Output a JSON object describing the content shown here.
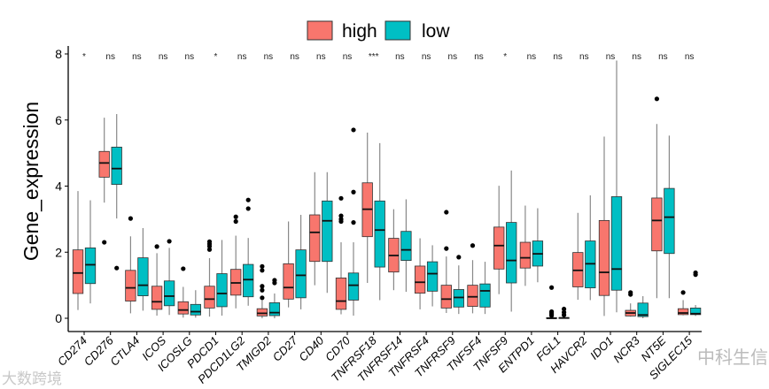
{
  "chart_data": {
    "type": "boxplot",
    "ylabel": "Gene_expression",
    "xlabel": "",
    "ylim": [
      0,
      8
    ],
    "yticks": [
      0,
      2,
      4,
      6,
      8
    ],
    "legend": {
      "position": "top",
      "entries": [
        {
          "name": "high",
          "color": "#F8766D"
        },
        {
          "name": "low",
          "color": "#00BFC4"
        }
      ]
    },
    "categories": [
      "CD274",
      "CD276",
      "CTLA4",
      "ICOS",
      "ICOSLG",
      "PDCD1",
      "PDCD1LG2",
      "TMIGD2",
      "CD27",
      "CD40",
      "CD70",
      "TNFRSF18",
      "TNFRSF14",
      "TNFRSF4",
      "TNFRSF9",
      "TNFSF4",
      "TNFSF9",
      "ENTPD1",
      "FGL1",
      "HAVCR2",
      "IDO1",
      "NCR3",
      "NT5E",
      "SIGLEC15"
    ],
    "significance": [
      "*",
      "ns",
      "ns",
      "ns",
      "ns",
      "*",
      "ns",
      "ns",
      "ns",
      "ns",
      "ns",
      "***",
      "ns",
      "ns",
      "ns",
      "ns",
      "*",
      "ns",
      "ns",
      "ns",
      "ns",
      "ns",
      "ns",
      "ns"
    ],
    "series": [
      {
        "name": "high",
        "boxes": [
          [
            0.25,
            0.75,
            1.37,
            2.07,
            3.85,
            []
          ],
          [
            3.5,
            4.27,
            4.7,
            5.05,
            6.07,
            [
              2.3
            ]
          ],
          [
            0.15,
            0.52,
            0.92,
            1.45,
            2.48,
            [
              3.02
            ]
          ],
          [
            0.08,
            0.27,
            0.5,
            0.97,
            1.97,
            [
              2.17
            ]
          ],
          [
            0.02,
            0.13,
            0.25,
            0.5,
            0.95,
            [
              1.5
            ]
          ],
          [
            0.05,
            0.31,
            0.58,
            0.97,
            1.82,
            [
              2.08,
              2.18,
              2.25,
              2.32
            ]
          ],
          [
            0.3,
            0.7,
            1.07,
            1.48,
            2.5,
            [
              2.93,
              3.07
            ]
          ],
          [
            0.0,
            0.07,
            0.15,
            0.29,
            0.55,
            [
              0.62,
              0.85,
              0.97,
              1.45,
              1.57
            ]
          ],
          [
            0.33,
            0.58,
            0.93,
            1.65,
            2.93,
            []
          ],
          [
            1.0,
            1.72,
            2.6,
            3.13,
            4.42,
            []
          ],
          [
            0.12,
            0.27,
            0.52,
            1.22,
            2.3,
            [
              2.93,
              3.0,
              3.1,
              3.63
            ]
          ],
          [
            1.07,
            2.47,
            3.3,
            4.1,
            5.62,
            []
          ],
          [
            0.85,
            1.4,
            1.9,
            2.42,
            3.3,
            []
          ],
          [
            0.27,
            0.76,
            1.09,
            1.58,
            2.42,
            []
          ],
          [
            0.16,
            0.31,
            0.58,
            1.0,
            1.87,
            [
              2.11,
              3.21
            ]
          ],
          [
            0.15,
            0.36,
            0.65,
            1.0,
            1.76,
            [
              2.2
            ]
          ],
          [
            0.73,
            1.49,
            2.2,
            2.76,
            4.01,
            []
          ],
          [
            0.98,
            1.52,
            1.83,
            2.3,
            3.41,
            []
          ],
          [
            0.0,
            0.0,
            0.0,
            0.02,
            0.04,
            [
              0.08,
              0.12,
              0.16,
              0.2,
              0.93
            ]
          ],
          [
            0.56,
            0.95,
            1.45,
            1.99,
            3.19,
            []
          ],
          [
            0.07,
            0.69,
            1.39,
            2.96,
            5.5,
            []
          ],
          [
            0.05,
            0.07,
            0.16,
            0.24,
            0.45,
            [
              0.72,
              0.78
            ]
          ],
          [
            0.61,
            2.04,
            2.96,
            3.64,
            5.88,
            [
              6.64
            ]
          ],
          [
            0.09,
            0.11,
            0.16,
            0.29,
            0.55,
            [
              0.78
            ]
          ]
        ]
      },
      {
        "name": "low",
        "boxes": [
          [
            0.45,
            1.05,
            1.62,
            2.13,
            3.57,
            []
          ],
          [
            3.02,
            4.05,
            4.53,
            5.18,
            6.18,
            [
              1.52
            ]
          ],
          [
            0.23,
            0.68,
            1.0,
            1.83,
            2.73,
            []
          ],
          [
            0.1,
            0.38,
            0.67,
            1.13,
            2.13,
            [
              2.33
            ]
          ],
          [
            0.02,
            0.1,
            0.2,
            0.42,
            0.85,
            []
          ],
          [
            0.08,
            0.35,
            0.75,
            1.35,
            2.37,
            []
          ],
          [
            0.38,
            0.65,
            1.17,
            1.63,
            2.43,
            [
              3.32,
              3.58
            ]
          ],
          [
            0.0,
            0.08,
            0.17,
            0.47,
            0.75,
            [
              1.07,
              1.15
            ]
          ],
          [
            0.27,
            0.62,
            1.3,
            2.07,
            3.13,
            []
          ],
          [
            0.77,
            1.72,
            2.95,
            3.55,
            4.42,
            []
          ],
          [
            0.08,
            0.55,
            1.0,
            1.37,
            2.3,
            [
              2.9,
              3.82,
              5.7
            ]
          ],
          [
            0.55,
            1.55,
            2.67,
            3.55,
            5.3,
            []
          ],
          [
            0.8,
            1.75,
            2.07,
            2.63,
            3.6,
            []
          ],
          [
            0.36,
            0.82,
            1.35,
            1.71,
            2.21,
            []
          ],
          [
            0.13,
            0.34,
            0.63,
            0.87,
            1.6,
            [
              1.85
            ]
          ],
          [
            0.13,
            0.34,
            0.83,
            1.04,
            1.71,
            []
          ],
          [
            0.2,
            1.07,
            1.75,
            2.9,
            4.47,
            []
          ],
          [
            1.09,
            1.58,
            1.95,
            2.34,
            3.33,
            []
          ],
          [
            0.0,
            0.0,
            0.01,
            0.02,
            0.04,
            [
              0.1,
              0.18,
              0.28
            ]
          ],
          [
            0.55,
            0.92,
            1.65,
            2.34,
            3.72,
            []
          ],
          [
            0.18,
            0.85,
            1.49,
            3.68,
            7.8,
            []
          ],
          [
            0.0,
            0.05,
            0.1,
            0.46,
            0.67,
            []
          ],
          [
            0.61,
            1.96,
            3.06,
            3.93,
            5.53,
            []
          ],
          [
            0.07,
            0.11,
            0.14,
            0.31,
            0.4,
            [
              1.32,
              1.38
            ]
          ]
        ]
      }
    ]
  },
  "watermarks": {
    "left": "大数跨境",
    "right": "中科生信"
  }
}
